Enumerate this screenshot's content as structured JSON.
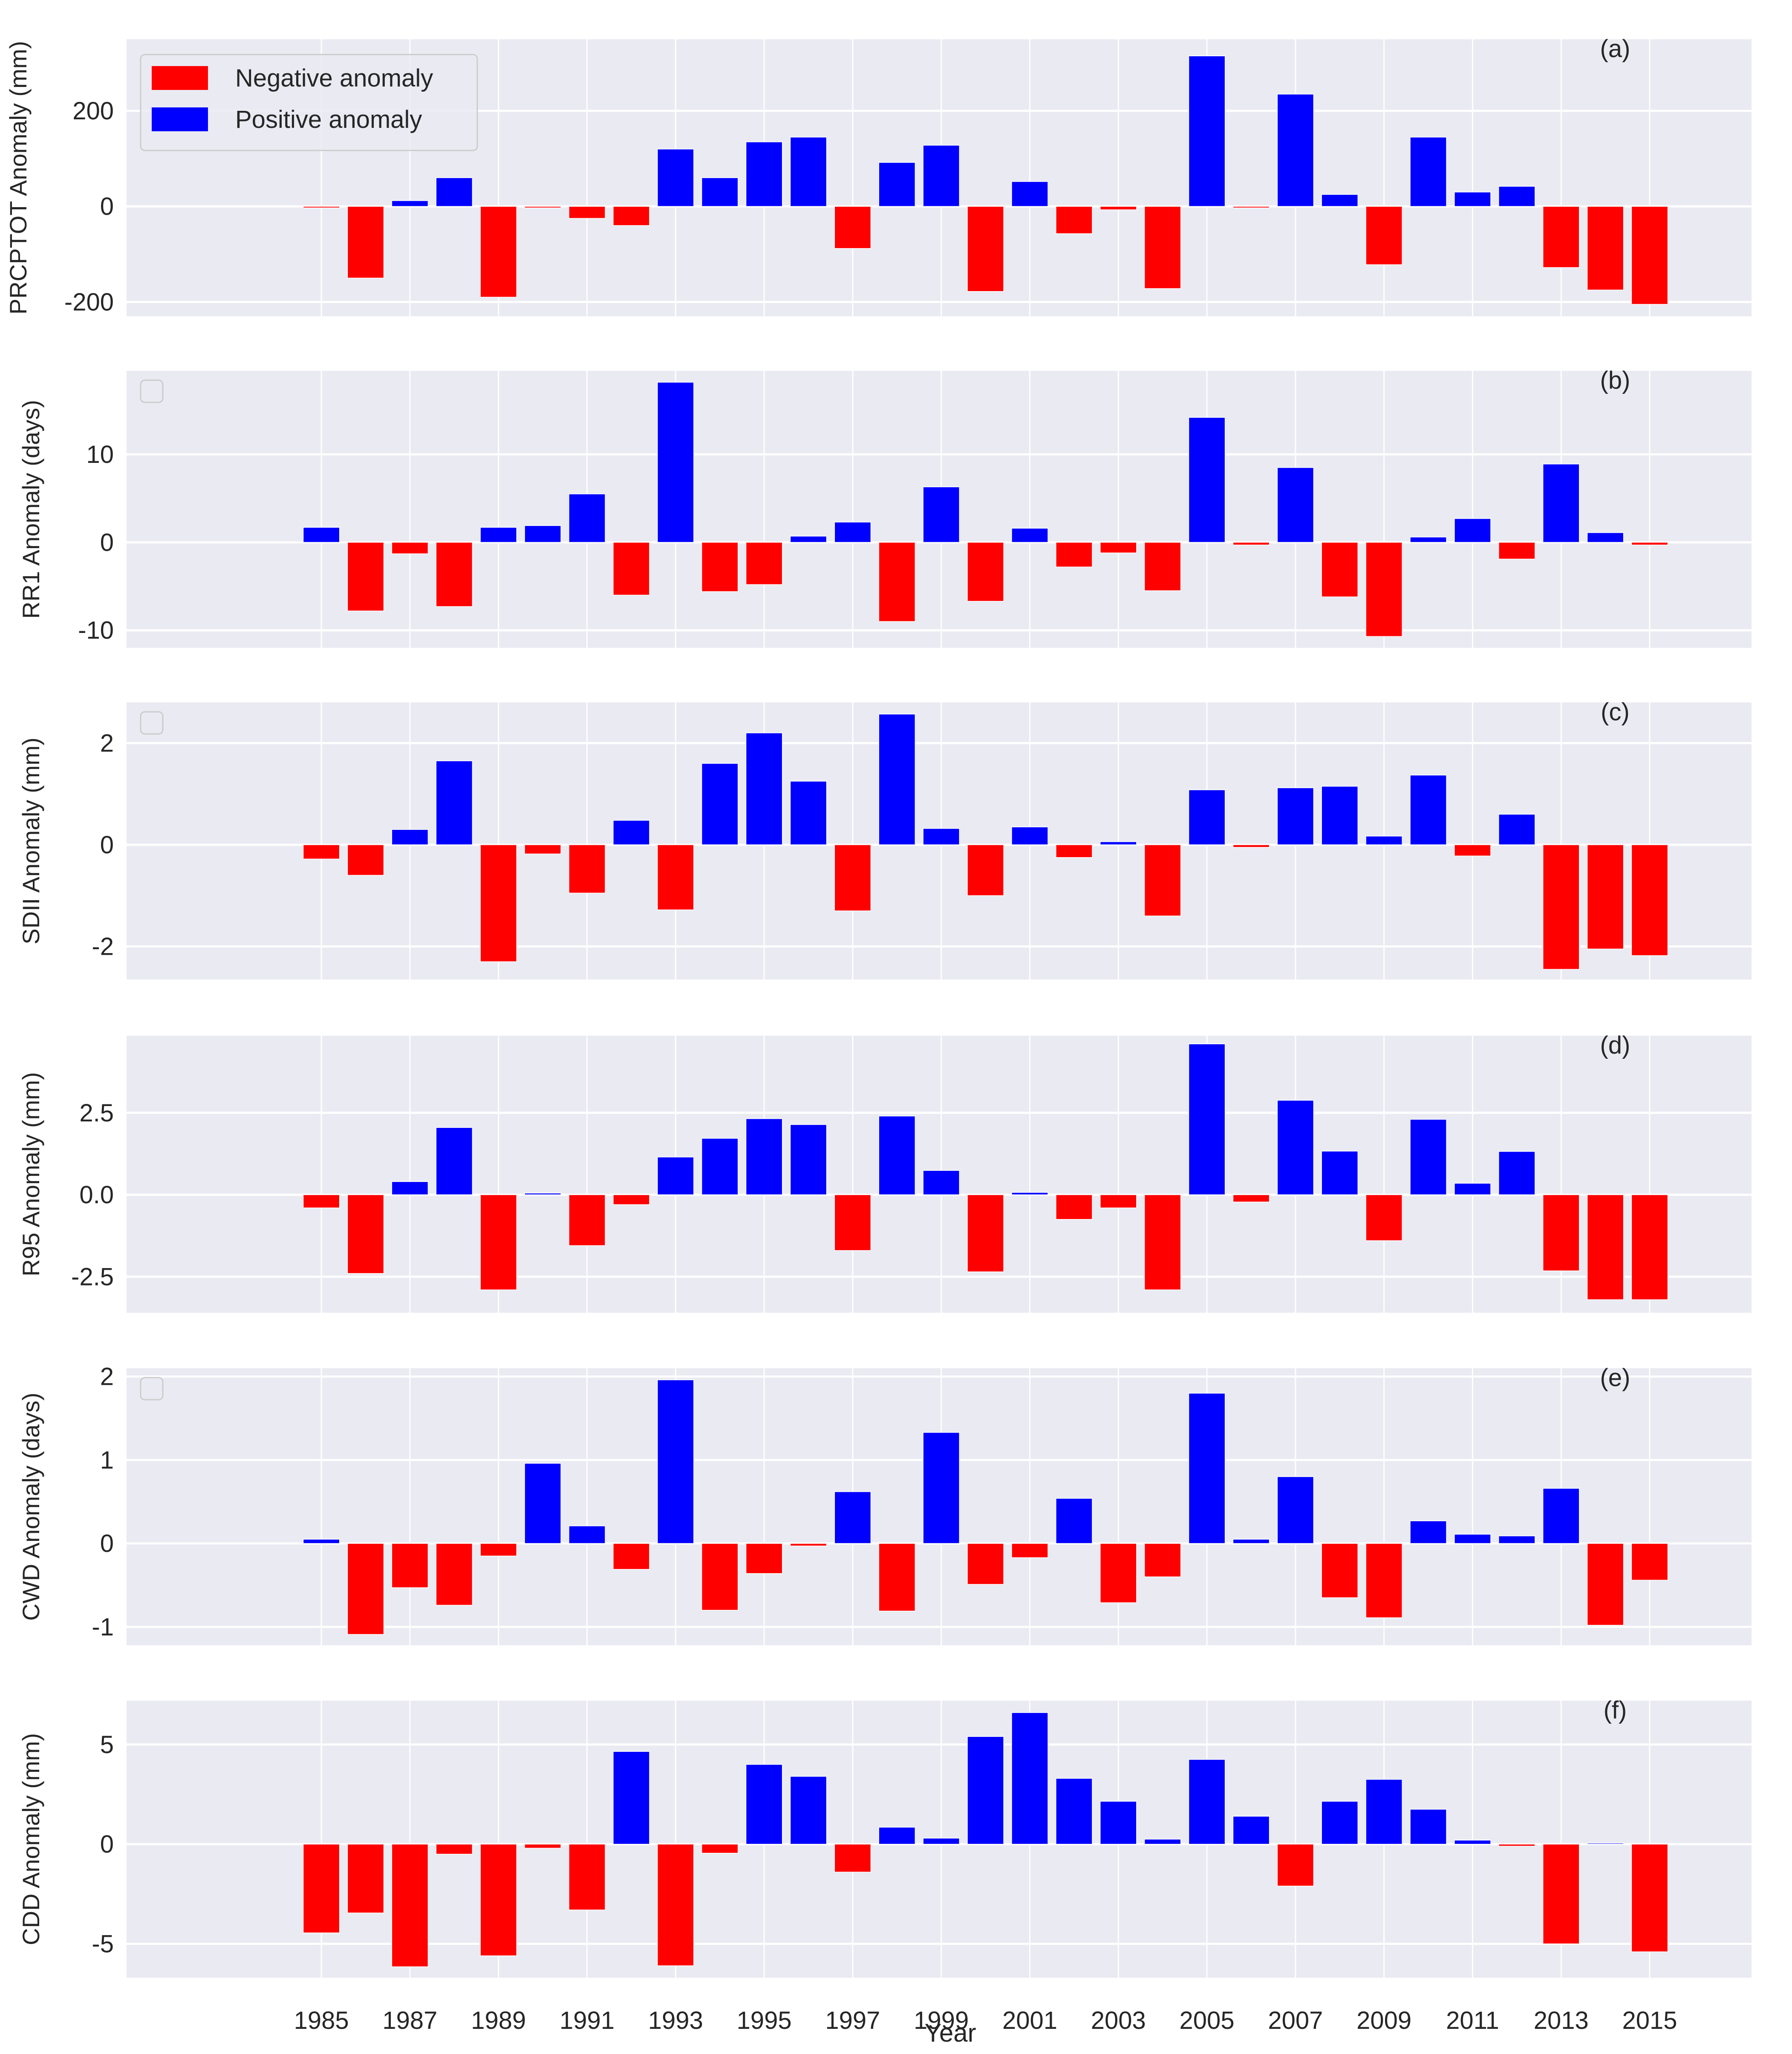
{
  "figure": {
    "xlabel": "Year",
    "legend": {
      "negative_label": "Negative anomaly",
      "positive_label": "Positive anomaly"
    },
    "colors": {
      "negative": "#ff0000",
      "positive": "#0000ff",
      "axes_bg": "#eaeaf2",
      "grid": "#ffffff",
      "text": "#262626"
    }
  },
  "chart_data": [
    {
      "type": "bar",
      "panel_label": "(a)",
      "ylabel": "PRCPTOT Anomaly (mm)",
      "ylim": [
        -230,
        350
      ],
      "yticks": [
        -200,
        0,
        200
      ],
      "ytick_labels": [
        "-200",
        "0",
        "200"
      ],
      "legend": "upper-left",
      "grid": true,
      "x": [
        1985,
        1986,
        1987,
        1988,
        1989,
        1990,
        1991,
        1992,
        1993,
        1994,
        1995,
        1996,
        1997,
        1998,
        1999,
        2000,
        2001,
        2002,
        2003,
        2004,
        2005,
        2006,
        2007,
        2008,
        2009,
        2010,
        2011,
        2012,
        2013,
        2014,
        2015
      ],
      "values": [
        -3,
        -150,
        12,
        60,
        -190,
        -3,
        -25,
        -40,
        120,
        60,
        135,
        145,
        -88,
        92,
        128,
        -178,
        52,
        -57,
        -7,
        -172,
        315,
        -3,
        235,
        25,
        -122,
        145,
        30,
        42,
        -128,
        -175,
        -205
      ]
    },
    {
      "type": "bar",
      "panel_label": "(b)",
      "ylabel": "RR1 Anomaly (days)",
      "ylim": [
        -12,
        19.5
      ],
      "yticks": [
        -10,
        0,
        10
      ],
      "ytick_labels": [
        "-10",
        "0",
        "10"
      ],
      "legend": "upper-left (empty)",
      "grid": true,
      "x": [
        1985,
        1986,
        1987,
        1988,
        1989,
        1990,
        1991,
        1992,
        1993,
        1994,
        1995,
        1996,
        1997,
        1998,
        1999,
        2000,
        2001,
        2002,
        2003,
        2004,
        2005,
        2006,
        2007,
        2008,
        2009,
        2010,
        2011,
        2012,
        2013,
        2014,
        2015
      ],
      "values": [
        1.7,
        -7.8,
        -1.3,
        -7.3,
        1.7,
        1.9,
        5.5,
        -6.0,
        18.2,
        -5.6,
        -4.8,
        0.7,
        2.3,
        -9.0,
        6.3,
        -6.7,
        1.6,
        -2.8,
        -1.2,
        -5.5,
        14.2,
        -0.3,
        8.5,
        -6.2,
        -10.7,
        0.6,
        2.7,
        -1.9,
        8.9,
        1.1,
        -0.3
      ]
    },
    {
      "type": "bar",
      "panel_label": "(c)",
      "ylabel": "SDII Anomaly (mm)",
      "ylim": [
        -2.65,
        2.8
      ],
      "yticks": [
        -2,
        0,
        2
      ],
      "ytick_labels": [
        "-2",
        "0",
        "2"
      ],
      "legend": "upper-left (empty)",
      "grid": true,
      "x": [
        1985,
        1986,
        1987,
        1988,
        1989,
        1990,
        1991,
        1992,
        1993,
        1994,
        1995,
        1996,
        1997,
        1998,
        1999,
        2000,
        2001,
        2002,
        2003,
        2004,
        2005,
        2006,
        2007,
        2008,
        2009,
        2010,
        2011,
        2012,
        2013,
        2014,
        2015
      ],
      "values": [
        -0.28,
        -0.6,
        0.3,
        1.65,
        -2.3,
        -0.18,
        -0.95,
        0.48,
        -1.28,
        1.6,
        2.2,
        1.25,
        -1.3,
        2.57,
        0.32,
        -1.0,
        0.35,
        -0.25,
        0.06,
        -1.4,
        1.08,
        -0.05,
        1.12,
        1.15,
        0.17,
        1.37,
        -0.22,
        0.6,
        -2.45,
        -2.05,
        -2.18
      ]
    },
    {
      "type": "bar",
      "panel_label": "(d)",
      "ylabel": "R95 Anomaly (mm)",
      "ylim": [
        -3.6,
        4.85
      ],
      "yticks": [
        -2.5,
        0.0,
        2.5
      ],
      "ytick_labels": [
        "-2.5",
        "0.0",
        "2.5"
      ],
      "legend": "none",
      "grid": true,
      "x": [
        1985,
        1986,
        1987,
        1988,
        1989,
        1990,
        1991,
        1992,
        1993,
        1994,
        1995,
        1996,
        1997,
        1998,
        1999,
        2000,
        2001,
        2002,
        2003,
        2004,
        2005,
        2006,
        2007,
        2008,
        2009,
        2010,
        2011,
        2012,
        2013,
        2014,
        2015
      ],
      "values": [
        -0.4,
        -2.4,
        0.4,
        2.05,
        -2.9,
        0.05,
        -1.55,
        -0.3,
        1.15,
        1.72,
        2.32,
        2.14,
        -1.7,
        2.4,
        0.74,
        -2.35,
        0.07,
        -0.75,
        -0.4,
        -2.9,
        4.6,
        -0.22,
        2.88,
        1.33,
        -1.4,
        2.3,
        0.35,
        1.32,
        -2.32,
        -3.2,
        -3.2
      ]
    },
    {
      "type": "bar",
      "panel_label": "(e)",
      "ylabel": "CWD Anomaly (days)",
      "ylim": [
        -1.22,
        2.1
      ],
      "yticks": [
        -1,
        0,
        1,
        2
      ],
      "ytick_labels": [
        "-1",
        "0",
        "1",
        "2"
      ],
      "legend": "upper-left (empty)",
      "grid": true,
      "x": [
        1985,
        1986,
        1987,
        1988,
        1989,
        1990,
        1991,
        1992,
        1993,
        1994,
        1995,
        1996,
        1997,
        1998,
        1999,
        2000,
        2001,
        2002,
        2003,
        2004,
        2005,
        2006,
        2007,
        2008,
        2009,
        2010,
        2011,
        2012,
        2013,
        2014,
        2015
      ],
      "values": [
        0.05,
        -1.09,
        -0.53,
        -0.74,
        -0.15,
        0.96,
        0.21,
        -0.31,
        1.96,
        -0.8,
        -0.36,
        -0.03,
        0.62,
        -0.81,
        1.33,
        -0.49,
        -0.17,
        0.54,
        -0.71,
        -0.4,
        1.8,
        0.05,
        0.8,
        -0.65,
        -0.89,
        0.27,
        0.11,
        0.09,
        0.66,
        -0.98,
        -0.44
      ]
    },
    {
      "type": "bar",
      "panel_label": "(f)",
      "ylabel": "CDD Anomaly (mm)",
      "ylim": [
        -6.7,
        7.2
      ],
      "yticks": [
        -5,
        0,
        5
      ],
      "ytick_labels": [
        "-5",
        "0",
        "5"
      ],
      "legend": "none",
      "grid": true,
      "x": [
        1985,
        1986,
        1987,
        1988,
        1989,
        1990,
        1991,
        1992,
        1993,
        1994,
        1995,
        1996,
        1997,
        1998,
        1999,
        2000,
        2001,
        2002,
        2003,
        2004,
        2005,
        2006,
        2007,
        2008,
        2009,
        2010,
        2011,
        2012,
        2013,
        2014,
        2015
      ],
      "values": [
        -4.45,
        -3.45,
        -6.15,
        -0.5,
        -5.6,
        -0.2,
        -3.3,
        4.65,
        -6.1,
        -0.45,
        4.0,
        3.4,
        -1.4,
        0.85,
        0.3,
        5.4,
        6.6,
        3.3,
        2.15,
        0.25,
        4.25,
        1.4,
        -2.1,
        2.15,
        3.25,
        1.75,
        0.2,
        -0.1,
        -5.0,
        0.05,
        -5.4
      ]
    }
  ],
  "xticks": {
    "values": [
      1985,
      1987,
      1989,
      1991,
      1993,
      1995,
      1997,
      1999,
      2001,
      2003,
      2005,
      2007,
      2009,
      2011,
      2013,
      2015
    ],
    "labels": [
      "1985",
      "1987",
      "1989",
      "1991",
      "1993",
      "1995",
      "1997",
      "1999",
      "2001",
      "2003",
      "2005",
      "2007",
      "2009",
      "2011",
      "2013",
      "2015"
    ]
  }
}
